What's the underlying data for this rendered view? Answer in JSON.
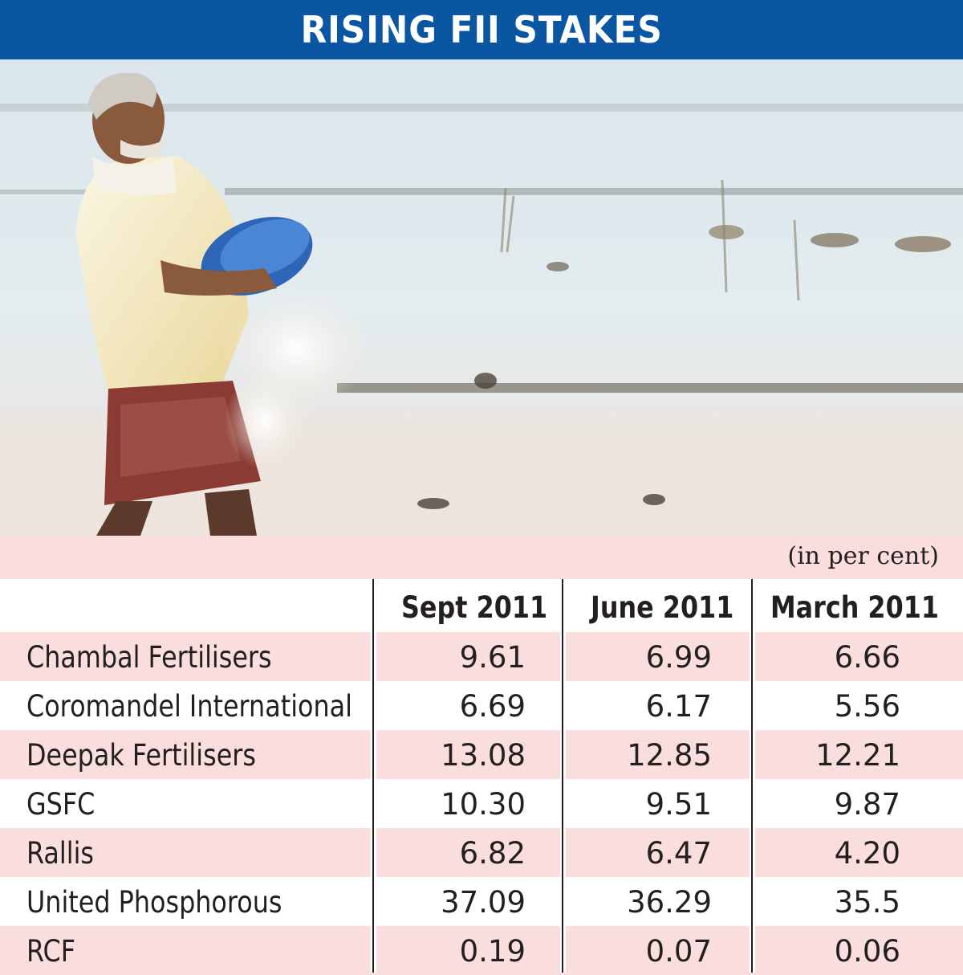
{
  "banner": {
    "title": "RISING FII STAKES"
  },
  "photo": {
    "description_icon": "farmer-sowing-fertiliser-photo"
  },
  "chart_data": {
    "type": "table",
    "title": "RISING FII STAKES",
    "unit_note": "(in per cent)",
    "columns": [
      "Sept 2011",
      "June 2011",
      "March 2011"
    ],
    "rows": [
      {
        "name": "Chambal Fertilisers",
        "values": [
          "9.61",
          "6.99",
          "6.66"
        ]
      },
      {
        "name": "Coromandel International",
        "values": [
          "6.69",
          "6.17",
          "5.56"
        ]
      },
      {
        "name": "Deepak Fertilisers",
        "values": [
          "13.08",
          "12.85",
          "12.21"
        ]
      },
      {
        "name": "GSFC",
        "values": [
          "10.30",
          "9.51",
          "9.87"
        ]
      },
      {
        "name": "Rallis",
        "values": [
          "6.82",
          "6.47",
          "4.20"
        ]
      },
      {
        "name": "United Phosphorous",
        "values": [
          "37.09",
          "36.29",
          "35.5"
        ]
      },
      {
        "name": "RCF",
        "values": [
          "0.19",
          "0.07",
          "0.06"
        ]
      }
    ]
  },
  "colors": {
    "banner": "#0a56a3",
    "row_shade": "#f9dedd",
    "text": "#231f20"
  }
}
